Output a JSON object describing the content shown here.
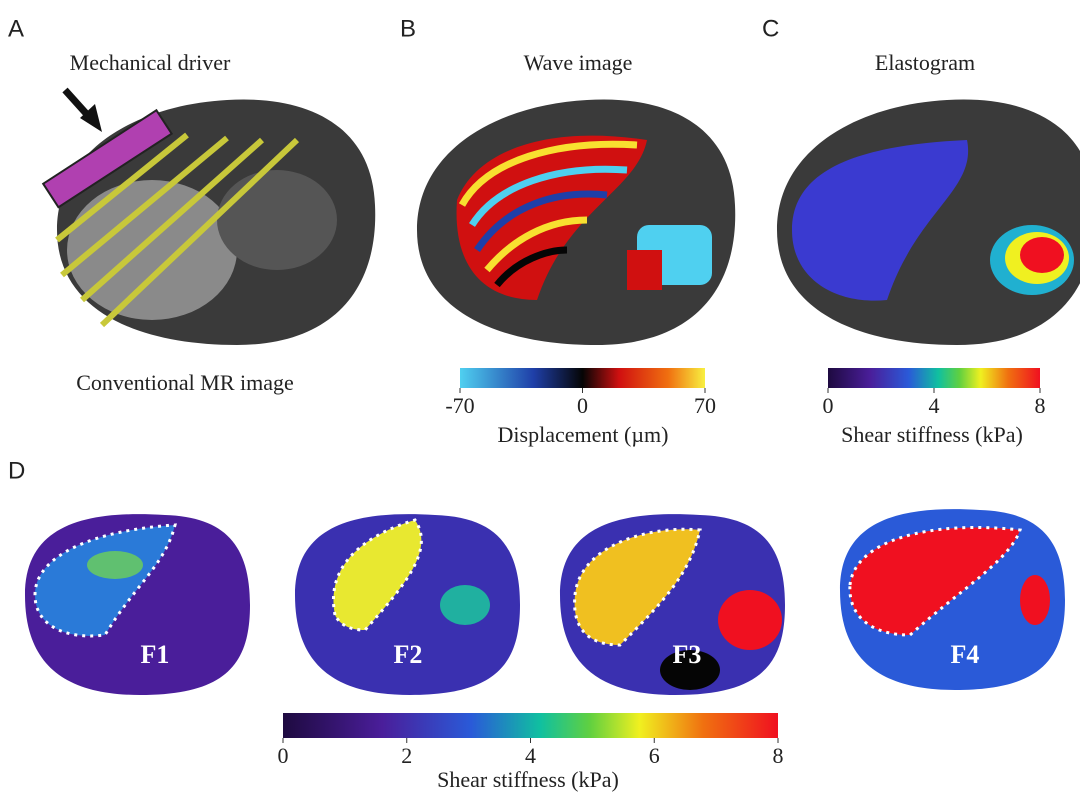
{
  "panels": [
    {
      "label": "A",
      "title": "Mechanical driver",
      "caption": "Conventional MR image"
    },
    {
      "label": "B",
      "title": "Wave image"
    },
    {
      "label": "C",
      "title": "Elastogram"
    },
    {
      "label": "D"
    }
  ],
  "colorbars": [
    {
      "ticks": [
        -70,
        0,
        70
      ],
      "label": "Displacement (µm)"
    },
    {
      "ticks": [
        0,
        4,
        8
      ],
      "label": "Shear stiffness (kPa)"
    },
    {
      "ticks": [
        0,
        2,
        4,
        6,
        8
      ],
      "label": "Shear stiffness (kPa)"
    }
  ],
  "stages": [
    "F1",
    "F2",
    "F3",
    "F4"
  ]
}
